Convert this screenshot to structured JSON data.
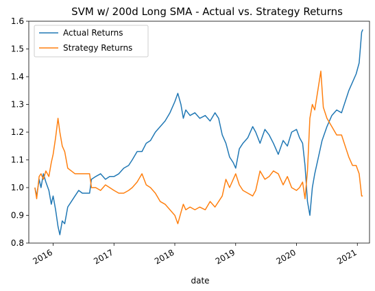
{
  "chart_data": {
    "type": "line",
    "title": "SVM w/ 200d Long SMA - Actual vs. Strategy Returns",
    "xlabel": "date",
    "ylabel": "",
    "ylim": [
      0.8,
      1.6
    ],
    "xlim": [
      2015.6,
      2021.2
    ],
    "grid": false,
    "legend": "top-left",
    "y_ticks": [
      0.8,
      0.9,
      1.0,
      1.1,
      1.2,
      1.3,
      1.4,
      1.5,
      1.6
    ],
    "x_ticks": [
      {
        "value": 2016,
        "label": "2016"
      },
      {
        "value": 2017,
        "label": "2017"
      },
      {
        "value": 2018,
        "label": "2018"
      },
      {
        "value": 2019,
        "label": "2019"
      },
      {
        "value": 2020,
        "label": "2020"
      },
      {
        "value": 2021,
        "label": "2021"
      }
    ],
    "series": [
      {
        "name": "Actual Returns",
        "color": "#1f77b4",
        "points": [
          [
            2015.7,
            1.0
          ],
          [
            2015.73,
            0.97
          ],
          [
            2015.77,
            1.03
          ],
          [
            2015.8,
            1.0
          ],
          [
            2015.84,
            1.05
          ],
          [
            2015.88,
            1.02
          ],
          [
            2015.93,
            0.99
          ],
          [
            2015.97,
            0.94
          ],
          [
            2016.0,
            0.97
          ],
          [
            2016.04,
            0.92
          ],
          [
            2016.08,
            0.86
          ],
          [
            2016.11,
            0.83
          ],
          [
            2016.15,
            0.88
          ],
          [
            2016.19,
            0.87
          ],
          [
            2016.24,
            0.93
          ],
          [
            2016.3,
            0.95
          ],
          [
            2016.36,
            0.97
          ],
          [
            2016.42,
            0.99
          ],
          [
            2016.48,
            0.98
          ],
          [
            2016.55,
            0.98
          ],
          [
            2016.6,
            0.98
          ],
          [
            2016.63,
            1.03
          ],
          [
            2016.7,
            1.04
          ],
          [
            2016.78,
            1.05
          ],
          [
            2016.86,
            1.03
          ],
          [
            2016.93,
            1.04
          ],
          [
            2017.0,
            1.04
          ],
          [
            2017.08,
            1.05
          ],
          [
            2017.16,
            1.07
          ],
          [
            2017.24,
            1.08
          ],
          [
            2017.3,
            1.1
          ],
          [
            2017.38,
            1.13
          ],
          [
            2017.46,
            1.13
          ],
          [
            2017.53,
            1.16
          ],
          [
            2017.6,
            1.17
          ],
          [
            2017.68,
            1.2
          ],
          [
            2017.76,
            1.22
          ],
          [
            2017.84,
            1.24
          ],
          [
            2017.92,
            1.27
          ],
          [
            2018.0,
            1.31
          ],
          [
            2018.05,
            1.34
          ],
          [
            2018.1,
            1.3
          ],
          [
            2018.14,
            1.25
          ],
          [
            2018.18,
            1.28
          ],
          [
            2018.25,
            1.26
          ],
          [
            2018.33,
            1.27
          ],
          [
            2018.41,
            1.25
          ],
          [
            2018.5,
            1.26
          ],
          [
            2018.58,
            1.24
          ],
          [
            2018.66,
            1.27
          ],
          [
            2018.72,
            1.25
          ],
          [
            2018.78,
            1.19
          ],
          [
            2018.84,
            1.16
          ],
          [
            2018.9,
            1.11
          ],
          [
            2018.96,
            1.09
          ],
          [
            2019.0,
            1.07
          ],
          [
            2019.06,
            1.14
          ],
          [
            2019.12,
            1.16
          ],
          [
            2019.2,
            1.18
          ],
          [
            2019.28,
            1.22
          ],
          [
            2019.33,
            1.2
          ],
          [
            2019.4,
            1.16
          ],
          [
            2019.48,
            1.21
          ],
          [
            2019.55,
            1.19
          ],
          [
            2019.62,
            1.16
          ],
          [
            2019.7,
            1.12
          ],
          [
            2019.78,
            1.17
          ],
          [
            2019.85,
            1.15
          ],
          [
            2019.92,
            1.2
          ],
          [
            2020.0,
            1.21
          ],
          [
            2020.05,
            1.18
          ],
          [
            2020.1,
            1.16
          ],
          [
            2020.14,
            1.08
          ],
          [
            2020.18,
            0.95
          ],
          [
            2020.22,
            0.9
          ],
          [
            2020.26,
            1.0
          ],
          [
            2020.3,
            1.05
          ],
          [
            2020.35,
            1.1
          ],
          [
            2020.42,
            1.17
          ],
          [
            2020.5,
            1.22
          ],
          [
            2020.58,
            1.26
          ],
          [
            2020.66,
            1.28
          ],
          [
            2020.74,
            1.27
          ],
          [
            2020.8,
            1.31
          ],
          [
            2020.86,
            1.35
          ],
          [
            2020.92,
            1.38
          ],
          [
            2020.98,
            1.41
          ],
          [
            2021.03,
            1.45
          ],
          [
            2021.07,
            1.56
          ],
          [
            2021.09,
            1.57
          ]
        ]
      },
      {
        "name": "Strategy Returns",
        "color": "#ff7f0e",
        "points": [
          [
            2015.7,
            1.0
          ],
          [
            2015.73,
            0.96
          ],
          [
            2015.77,
            1.04
          ],
          [
            2015.8,
            1.05
          ],
          [
            2015.84,
            1.03
          ],
          [
            2015.88,
            1.06
          ],
          [
            2015.93,
            1.04
          ],
          [
            2015.97,
            1.09
          ],
          [
            2016.0,
            1.12
          ],
          [
            2016.04,
            1.18
          ],
          [
            2016.08,
            1.25
          ],
          [
            2016.11,
            1.2
          ],
          [
            2016.15,
            1.15
          ],
          [
            2016.19,
            1.13
          ],
          [
            2016.24,
            1.07
          ],
          [
            2016.3,
            1.06
          ],
          [
            2016.36,
            1.05
          ],
          [
            2016.42,
            1.05
          ],
          [
            2016.48,
            1.05
          ],
          [
            2016.55,
            1.05
          ],
          [
            2016.6,
            1.05
          ],
          [
            2016.63,
            1.0
          ],
          [
            2016.7,
            1.0
          ],
          [
            2016.78,
            0.99
          ],
          [
            2016.86,
            1.01
          ],
          [
            2016.93,
            1.0
          ],
          [
            2017.0,
            0.99
          ],
          [
            2017.08,
            0.98
          ],
          [
            2017.16,
            0.98
          ],
          [
            2017.24,
            0.99
          ],
          [
            2017.3,
            1.0
          ],
          [
            2017.38,
            1.02
          ],
          [
            2017.46,
            1.05
          ],
          [
            2017.53,
            1.01
          ],
          [
            2017.6,
            1.0
          ],
          [
            2017.68,
            0.98
          ],
          [
            2017.76,
            0.95
          ],
          [
            2017.84,
            0.94
          ],
          [
            2017.92,
            0.92
          ],
          [
            2018.0,
            0.9
          ],
          [
            2018.05,
            0.87
          ],
          [
            2018.1,
            0.91
          ],
          [
            2018.14,
            0.94
          ],
          [
            2018.18,
            0.92
          ],
          [
            2018.25,
            0.93
          ],
          [
            2018.33,
            0.92
          ],
          [
            2018.41,
            0.93
          ],
          [
            2018.5,
            0.92
          ],
          [
            2018.58,
            0.95
          ],
          [
            2018.66,
            0.93
          ],
          [
            2018.72,
            0.95
          ],
          [
            2018.78,
            0.97
          ],
          [
            2018.84,
            1.03
          ],
          [
            2018.9,
            1.0
          ],
          [
            2018.96,
            1.03
          ],
          [
            2019.0,
            1.05
          ],
          [
            2019.06,
            1.01
          ],
          [
            2019.12,
            0.99
          ],
          [
            2019.2,
            0.98
          ],
          [
            2019.28,
            0.97
          ],
          [
            2019.33,
            0.99
          ],
          [
            2019.4,
            1.06
          ],
          [
            2019.48,
            1.03
          ],
          [
            2019.55,
            1.04
          ],
          [
            2019.62,
            1.06
          ],
          [
            2019.7,
            1.05
          ],
          [
            2019.78,
            1.01
          ],
          [
            2019.85,
            1.04
          ],
          [
            2019.92,
            1.0
          ],
          [
            2020.0,
            0.99
          ],
          [
            2020.05,
            1.0
          ],
          [
            2020.1,
            1.02
          ],
          [
            2020.14,
            0.96
          ],
          [
            2020.18,
            1.06
          ],
          [
            2020.22,
            1.25
          ],
          [
            2020.26,
            1.3
          ],
          [
            2020.3,
            1.28
          ],
          [
            2020.35,
            1.35
          ],
          [
            2020.4,
            1.42
          ],
          [
            2020.44,
            1.29
          ],
          [
            2020.5,
            1.25
          ],
          [
            2020.58,
            1.22
          ],
          [
            2020.66,
            1.19
          ],
          [
            2020.74,
            1.19
          ],
          [
            2020.8,
            1.15
          ],
          [
            2020.86,
            1.11
          ],
          [
            2020.92,
            1.08
          ],
          [
            2020.98,
            1.08
          ],
          [
            2021.03,
            1.05
          ],
          [
            2021.07,
            0.97
          ],
          [
            2021.09,
            0.97
          ]
        ]
      }
    ]
  }
}
